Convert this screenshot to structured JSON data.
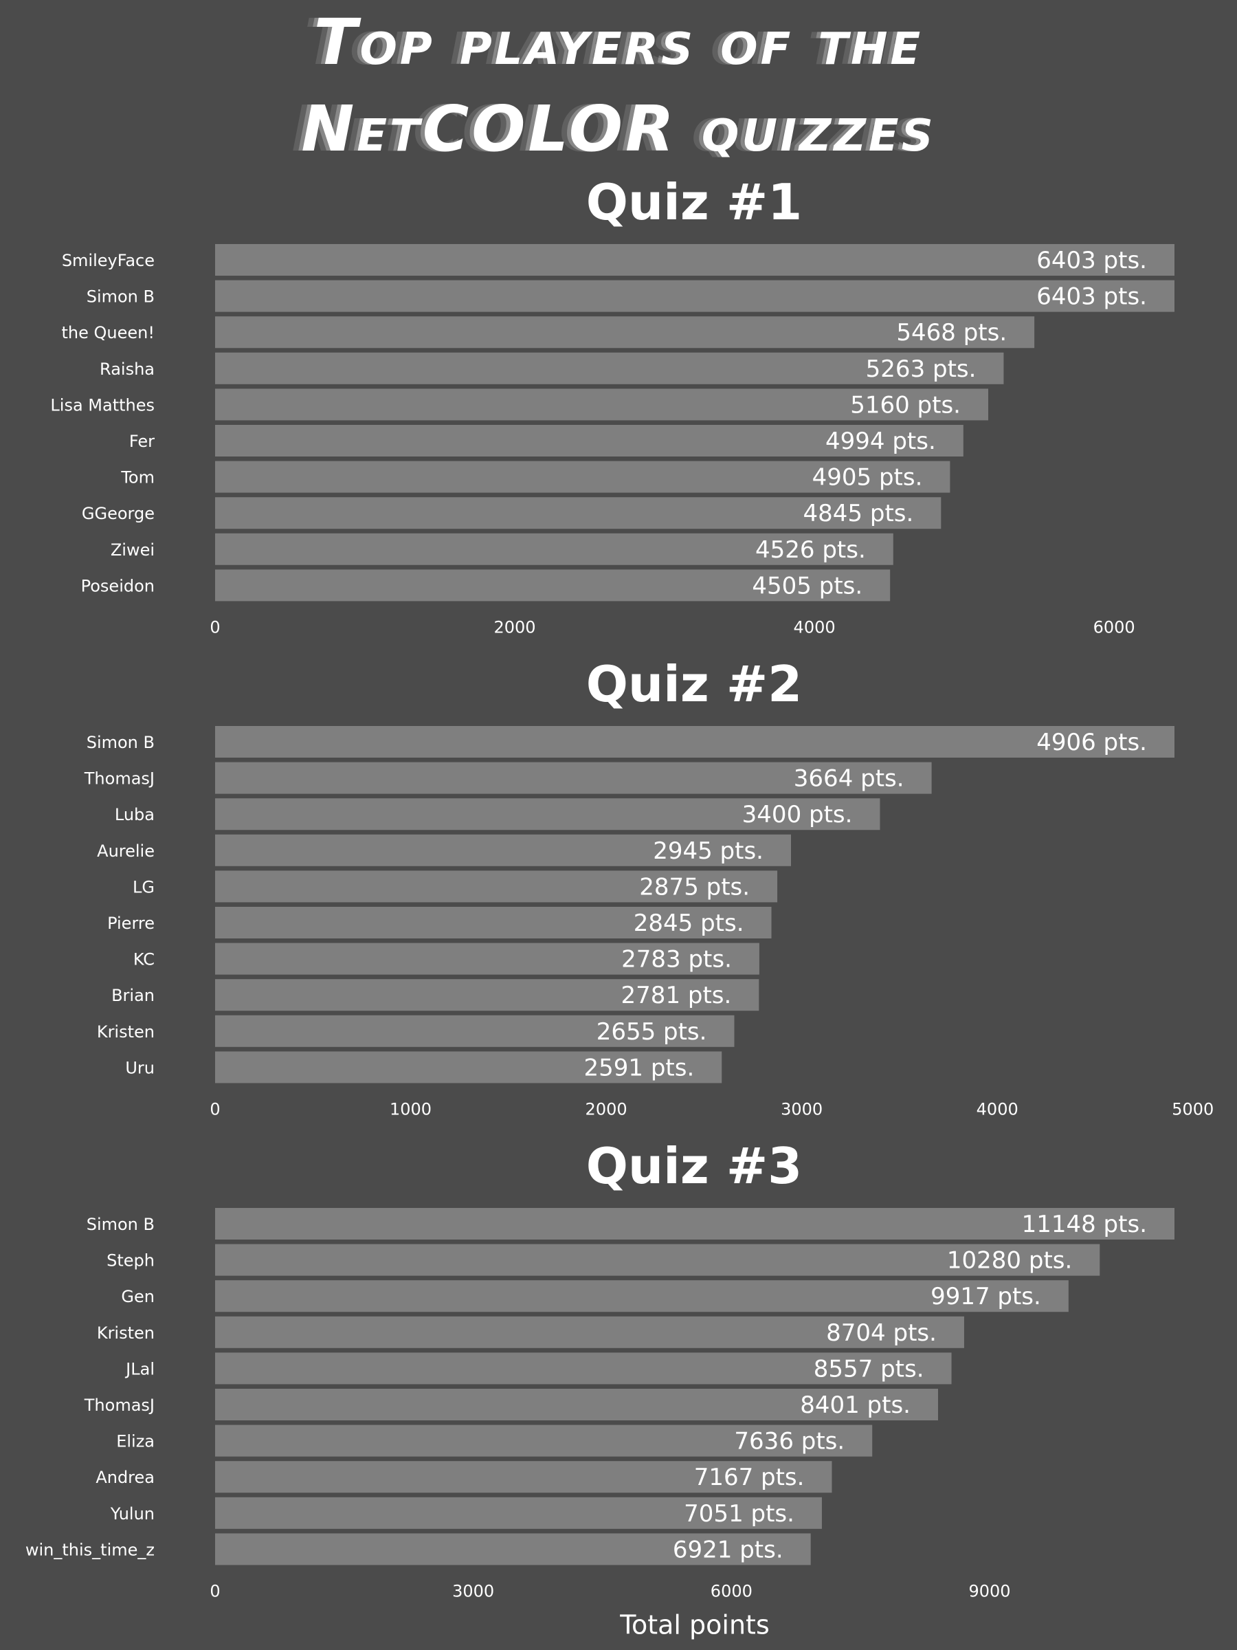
{
  "figure": {
    "title_line1": "Top players of the",
    "title_line2": "NetCOLOR quizzes",
    "xlabel": "Total points",
    "background": "#4b4b4b",
    "bar_color": "#7f7f7f",
    "text_color": "#ffffff",
    "value_suffix": " pts."
  },
  "chart_data": [
    {
      "type": "bar",
      "orientation": "horizontal",
      "title": "Quiz #1",
      "categories": [
        "SmileyFace",
        "Simon B",
        "the Queen!",
        "Raisha",
        "Lisa Matthes",
        "Fer",
        "Tom",
        "GGeorge",
        "Ziwei",
        "Poseidon"
      ],
      "values": [
        6403,
        6403,
        5468,
        5263,
        5160,
        4994,
        4905,
        4845,
        4526,
        4505
      ],
      "xlim": [
        0,
        6403
      ],
      "xticks": [
        0,
        2000,
        4000,
        6000
      ]
    },
    {
      "type": "bar",
      "orientation": "horizontal",
      "title": "Quiz #2",
      "categories": [
        "Simon B",
        "ThomasJ",
        "Luba",
        "Aurelie",
        "LG",
        "Pierre",
        "KC",
        "Brian",
        "Kristen",
        "Uru"
      ],
      "values": [
        4906,
        3664,
        3400,
        2945,
        2875,
        2845,
        2783,
        2781,
        2655,
        2591
      ],
      "xlim": [
        0,
        4906
      ],
      "xticks": [
        0,
        1000,
        2000,
        3000,
        4000,
        5000
      ]
    },
    {
      "type": "bar",
      "orientation": "horizontal",
      "title": "Quiz #3",
      "categories": [
        "Simon B",
        "Steph",
        "Gen",
        "Kristen",
        "JLal",
        "ThomasJ",
        "Eliza",
        "Andrea",
        "Yulun",
        "win_this_time_z"
      ],
      "values": [
        11148,
        10280,
        9917,
        8704,
        8557,
        8401,
        7636,
        7167,
        7051,
        6921
      ],
      "xlim": [
        0,
        11148
      ],
      "xticks": [
        0,
        3000,
        6000,
        9000
      ],
      "xlabel": "Total points"
    }
  ]
}
